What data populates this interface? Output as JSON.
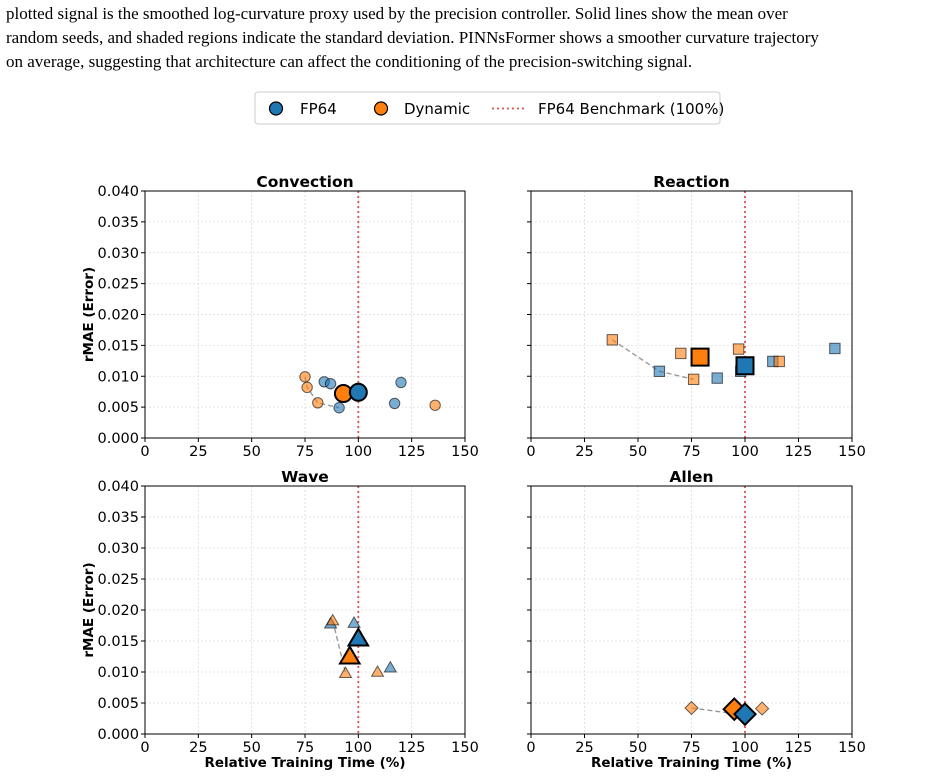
{
  "caption": {
    "line1": "plotted signal is the smoothed log-curvature proxy used by the precision controller. Solid lines show the mean over",
    "line2": "random seeds, and shaded regions indicate the standard deviation. PINNsFormer shows a smoother curvature trajectory",
    "line3": "on average, suggesting that architecture can affect the conditioning of the precision-switching signal."
  },
  "legend": {
    "fp64": "FP64",
    "dynamic": "Dynamic",
    "benchmark": "FP64 Benchmark (100%)",
    "placement": "top-center"
  },
  "colors": {
    "fp64": "#1f77b4",
    "dynamic": "#ff7f0e",
    "benchmark": "#e05252",
    "connector": "#999999"
  },
  "chart_data": [
    {
      "type": "scatter",
      "title": "Convection",
      "marker": "circle",
      "xlabel": "",
      "ylabel": "rMAE (Error)",
      "xlim": [
        0,
        150
      ],
      "ylim": [
        0,
        0.04
      ],
      "xticks": [
        "0",
        "25",
        "50",
        "75",
        "100",
        "125",
        "150"
      ],
      "yticks": [
        "0.000",
        "0.005",
        "0.010",
        "0.015",
        "0.020",
        "0.025",
        "0.030",
        "0.035",
        "0.040"
      ],
      "grid": true,
      "benchmark_x": 100,
      "fp64_seeds": [
        [
          84,
          0.0091
        ],
        [
          87,
          0.0088
        ],
        [
          91,
          0.0049
        ],
        [
          117,
          0.0056
        ],
        [
          120,
          0.009
        ]
      ],
      "dynamic_seeds": [
        [
          75,
          0.0099
        ],
        [
          76,
          0.0082
        ],
        [
          81,
          0.0057
        ],
        [
          136,
          0.0053
        ]
      ],
      "fp64_mean": [
        100,
        0.0074
      ],
      "dynamic_mean": [
        93,
        0.0072
      ],
      "connector": [
        [
          75,
          0.0099
        ],
        [
          76,
          0.0082
        ],
        [
          81,
          0.0057
        ],
        [
          91,
          0.0049
        ]
      ]
    },
    {
      "type": "scatter",
      "title": "Reaction",
      "marker": "square",
      "xlabel": "",
      "ylabel": "",
      "xlim": [
        0,
        150
      ],
      "ylim": [
        0,
        0.04
      ],
      "xticks": [
        "0",
        "25",
        "50",
        "75",
        "100",
        "125",
        "150"
      ],
      "yticks": [],
      "grid": true,
      "benchmark_x": 100,
      "fp64_seeds": [
        [
          60,
          0.0108
        ],
        [
          87,
          0.0097
        ],
        [
          98,
          0.0108
        ],
        [
          113,
          0.0124
        ],
        [
          142,
          0.0145
        ]
      ],
      "dynamic_seeds": [
        [
          38,
          0.0159
        ],
        [
          70,
          0.0137
        ],
        [
          76,
          0.0095
        ],
        [
          97,
          0.0144
        ],
        [
          116,
          0.0124
        ]
      ],
      "fp64_mean": [
        100,
        0.0117
      ],
      "dynamic_mean": [
        79,
        0.0131
      ],
      "connector": [
        [
          38,
          0.0159
        ],
        [
          60,
          0.0108
        ],
        [
          76,
          0.0095
        ]
      ]
    },
    {
      "type": "scatter",
      "title": "Wave",
      "marker": "triangle",
      "xlabel": "Relative Training Time (%)",
      "ylabel": "rMAE (Error)",
      "xlim": [
        0,
        150
      ],
      "ylim": [
        0,
        0.04
      ],
      "xticks": [
        "0",
        "25",
        "50",
        "75",
        "100",
        "125",
        "150"
      ],
      "yticks": [
        "0.000",
        "0.005",
        "0.010",
        "0.015",
        "0.020",
        "0.025",
        "0.030",
        "0.035",
        "0.040"
      ],
      "grid": true,
      "benchmark_x": 100,
      "fp64_seeds": [
        [
          87,
          0.0178
        ],
        [
          98,
          0.0179
        ],
        [
          115,
          0.0107
        ]
      ],
      "dynamic_seeds": [
        [
          88,
          0.0183
        ],
        [
          94,
          0.0098
        ],
        [
          109,
          0.01
        ]
      ],
      "fp64_mean": [
        100,
        0.0154
      ],
      "dynamic_mean": [
        96,
        0.0125
      ],
      "connector": [
        [
          88,
          0.0183
        ],
        [
          94,
          0.0098
        ]
      ]
    },
    {
      "type": "scatter",
      "title": "Allen",
      "marker": "diamond",
      "xlabel": "Relative Training Time (%)",
      "ylabel": "",
      "xlim": [
        0,
        150
      ],
      "ylim": [
        0,
        0.04
      ],
      "xticks": [
        "0",
        "25",
        "50",
        "75",
        "100",
        "125",
        "150"
      ],
      "yticks": [],
      "grid": true,
      "benchmark_x": 100,
      "fp64_seeds": [
        [
          101,
          0.003
        ]
      ],
      "dynamic_seeds": [
        [
          75,
          0.0042
        ],
        [
          108,
          0.0041
        ]
      ],
      "fp64_mean": [
        100,
        0.0032
      ],
      "dynamic_mean": [
        95,
        0.004
      ],
      "connector": [
        [
          75,
          0.0042
        ],
        [
          101,
          0.003
        ]
      ]
    }
  ]
}
